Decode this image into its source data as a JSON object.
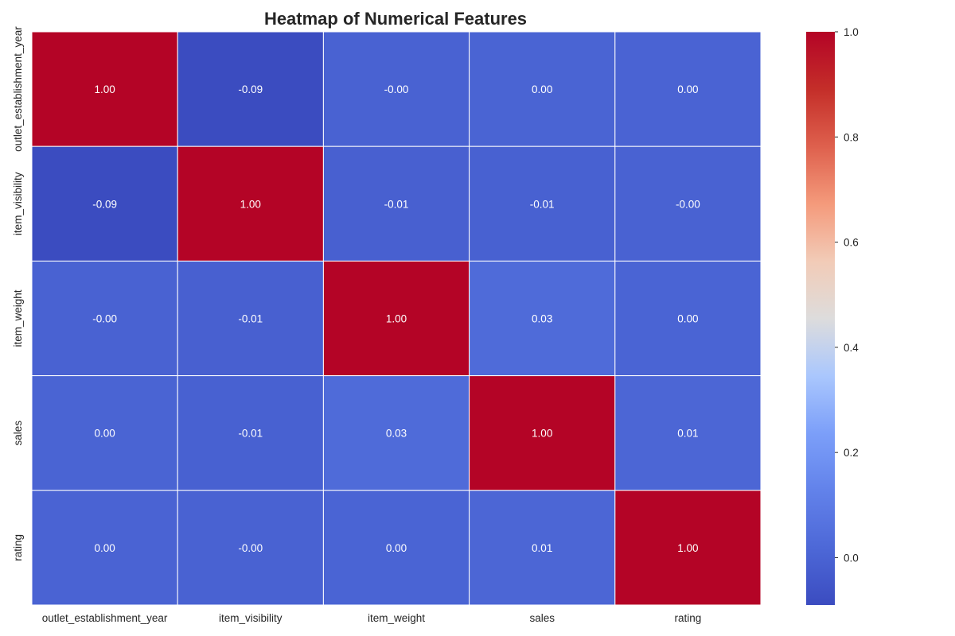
{
  "chart_data": {
    "type": "heatmap",
    "title": "Heatmap of Numerical Features",
    "xlabel": "",
    "ylabel": "",
    "x_categories": [
      "outlet_establishment_year",
      "item_visibility",
      "item_weight",
      "sales",
      "rating"
    ],
    "y_categories": [
      "outlet_establishment_year",
      "item_visibility",
      "item_weight",
      "sales",
      "rating"
    ],
    "values": [
      [
        1.0,
        -0.09,
        -0.004,
        0.002,
        0.001
      ],
      [
        -0.09,
        1.0,
        -0.012,
        -0.009,
        -0.004
      ],
      [
        -0.004,
        -0.012,
        1.0,
        0.03,
        0.003
      ],
      [
        0.002,
        -0.009,
        0.03,
        1.0,
        0.011
      ],
      [
        0.001,
        -0.004,
        0.003,
        0.011,
        1.0
      ]
    ],
    "annotations": [
      [
        "1.00",
        "-0.09",
        "-0.00",
        "0.00",
        "0.00"
      ],
      [
        "-0.09",
        "1.00",
        "-0.01",
        "-0.01",
        "-0.00"
      ],
      [
        "-0.00",
        "-0.01",
        "1.00",
        "0.03",
        "0.00"
      ],
      [
        "0.00",
        "-0.01",
        "0.03",
        "1.00",
        "0.01"
      ],
      [
        "0.00",
        "-0.00",
        "0.00",
        "0.01",
        "1.00"
      ]
    ],
    "colormap": "coolwarm",
    "vmin": -0.09,
    "vmax": 1.0,
    "colorbar": {
      "ticks": [
        0.0,
        0.2,
        0.4,
        0.6,
        0.8,
        1.0
      ],
      "tick_labels": [
        "0.0",
        "0.2",
        "0.4",
        "0.6",
        "0.8",
        "1.0"
      ]
    },
    "grid_lines_color": "#ffffff",
    "annotation_color": "#ffffff",
    "text_color": "#262626"
  }
}
